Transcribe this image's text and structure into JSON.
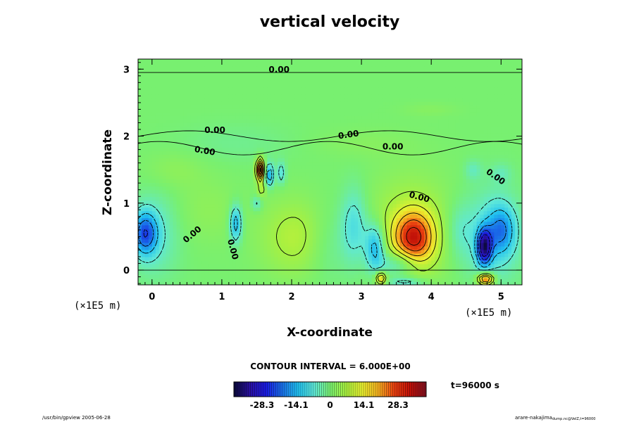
{
  "chart_data": {
    "type": "heatmap",
    "title": "vertical velocity",
    "xlabel": "X-coordinate",
    "ylabel": "Z-coordinate",
    "x_scale_label": "(×1E5 m)",
    "z_scale_label": "(×1E5 m)",
    "xlim": [
      -0.2,
      5.3
    ],
    "ylim": [
      -0.22,
      3.15
    ],
    "x_ticks": [
      "0",
      "1",
      "2",
      "3",
      "4",
      "5"
    ],
    "x_tick_values": [
      0,
      1,
      2,
      3,
      4,
      5
    ],
    "y_ticks": [
      "0",
      "1",
      "2",
      "3"
    ],
    "y_tick_values": [
      0,
      1,
      2,
      3
    ],
    "contour_interval_text": "CONTOUR INTERVAL = 6.000E+00",
    "time_text": "t=96000 s",
    "colorbar": {
      "range": [
        -40,
        40
      ],
      "tick_labels": [
        "-28.3",
        "-14.1",
        "0",
        "14.1",
        "28.3"
      ],
      "tick_values": [
        -28.3,
        -14.1,
        0,
        14.1,
        28.3
      ]
    },
    "contour_labels": [
      {
        "text": "0.00",
        "x": 1.82,
        "z": 2.95,
        "angle": 0
      },
      {
        "text": "0.00",
        "x": 0.9,
        "z": 2.05,
        "angle": 0
      },
      {
        "text": "0.00",
        "x": 0.75,
        "z": 1.74,
        "angle": 10
      },
      {
        "text": "0.00",
        "x": 2.82,
        "z": 1.98,
        "angle": -8
      },
      {
        "text": "0.00",
        "x": 3.45,
        "z": 1.8,
        "angle": 0
      },
      {
        "text": "0.00",
        "x": 4.9,
        "z": 1.36,
        "angle": 35
      },
      {
        "text": "0.00",
        "x": 3.82,
        "z": 1.05,
        "angle": 15
      },
      {
        "text": "0.00",
        "x": 0.6,
        "z": 0.5,
        "angle": -40
      },
      {
        "text": "0.00",
        "x": 1.12,
        "z": 0.3,
        "angle": 75
      }
    ],
    "features": [
      {
        "x": 3.75,
        "z": 0.48,
        "value": 26,
        "sx": 0.2,
        "sz": 0.28
      },
      {
        "x": 3.7,
        "z": 0.62,
        "value": 8,
        "sx": 0.45,
        "sz": 0.55
      },
      {
        "x": 4.76,
        "z": 0.35,
        "value": -33,
        "sx": 0.07,
        "sz": 0.18
      },
      {
        "x": 5.0,
        "z": 0.6,
        "value": -14,
        "sx": 0.14,
        "sz": 0.25
      },
      {
        "x": 4.85,
        "z": 0.5,
        "value": -8,
        "sx": 0.3,
        "sz": 0.5
      },
      {
        "x": 4.78,
        "z": -0.13,
        "value": 30,
        "sx": 0.08,
        "sz": 0.06
      },
      {
        "x": -0.1,
        "z": 0.55,
        "value": -20,
        "sx": 0.12,
        "sz": 0.22
      },
      {
        "x": 0.05,
        "z": 0.55,
        "value": -6,
        "sx": 0.25,
        "sz": 0.45
      },
      {
        "x": 1.55,
        "z": 1.5,
        "value": 38,
        "sx": 0.035,
        "sz": 0.11
      },
      {
        "x": 1.68,
        "z": 1.42,
        "value": -18,
        "sx": 0.04,
        "sz": 0.12
      },
      {
        "x": 1.85,
        "z": 1.45,
        "value": -10,
        "sx": 0.04,
        "sz": 0.12
      },
      {
        "x": 1.57,
        "z": 1.2,
        "value": 8,
        "sx": 0.04,
        "sz": 0.08
      },
      {
        "x": 1.5,
        "z": 1.0,
        "value": -8,
        "sx": 0.05,
        "sz": 0.08
      },
      {
        "x": 1.2,
        "z": 0.7,
        "value": -16,
        "sx": 0.06,
        "sz": 0.2
      },
      {
        "x": 2.05,
        "z": 0.5,
        "value": 8,
        "sx": 0.35,
        "sz": 0.4
      },
      {
        "x": 0.8,
        "z": 0.9,
        "value": 3,
        "sx": 0.35,
        "sz": 0.35
      },
      {
        "x": 2.9,
        "z": 0.65,
        "value": -10,
        "sx": 0.14,
        "sz": 0.4
      },
      {
        "x": 3.2,
        "z": 0.35,
        "value": -16,
        "sx": 0.1,
        "sz": 0.25
      },
      {
        "x": 3.55,
        "z": 0.1,
        "value": -12,
        "sx": 0.2,
        "sz": 0.14
      },
      {
        "x": 3.28,
        "z": -0.12,
        "value": 22,
        "sx": 0.05,
        "sz": 0.06
      },
      {
        "x": 3.65,
        "z": -0.18,
        "value": -10,
        "sx": 0.2,
        "sz": 0.05
      },
      {
        "x": 2.5,
        "z": 0.4,
        "value": -4,
        "sx": 0.2,
        "sz": 0.4
      },
      {
        "x": 4.4,
        "z": 0.6,
        "value": -5,
        "sx": 0.15,
        "sz": 0.3
      },
      {
        "x": 4.6,
        "z": 1.5,
        "value": -5,
        "sx": 0.08,
        "sz": 0.1
      },
      {
        "x": 5.0,
        "z": 1.45,
        "value": -4,
        "sx": 0.1,
        "sz": 0.1
      },
      {
        "x": 0.3,
        "z": 1.5,
        "value": 3,
        "sx": 0.3,
        "sz": 0.2
      },
      {
        "x": 3.98,
        "z": 2.4,
        "value": 2,
        "sx": 0.28,
        "sz": 0.07
      },
      {
        "x": 1.2,
        "z": 1.9,
        "value": -2,
        "sx": 0.6,
        "sz": 0.2
      },
      {
        "x": 3.0,
        "z": 1.9,
        "value": 2,
        "sx": 0.5,
        "sz": 0.15
      }
    ]
  },
  "colors": {
    "colormap": [
      "#0a0a3a",
      "#2a10a0",
      "#1a1ae0",
      "#1a6fe8",
      "#20c0f0",
      "#5fe8d8",
      "#78f070",
      "#a8f040",
      "#e8f030",
      "#f5b020",
      "#e84010",
      "#c01008",
      "#801020"
    ]
  },
  "footer": {
    "left": "/usr/bin/gpview 2005-06-28",
    "right_main": "arare-nakajima",
    "right_sub": "dump.nc@VelZ,t=96000"
  }
}
